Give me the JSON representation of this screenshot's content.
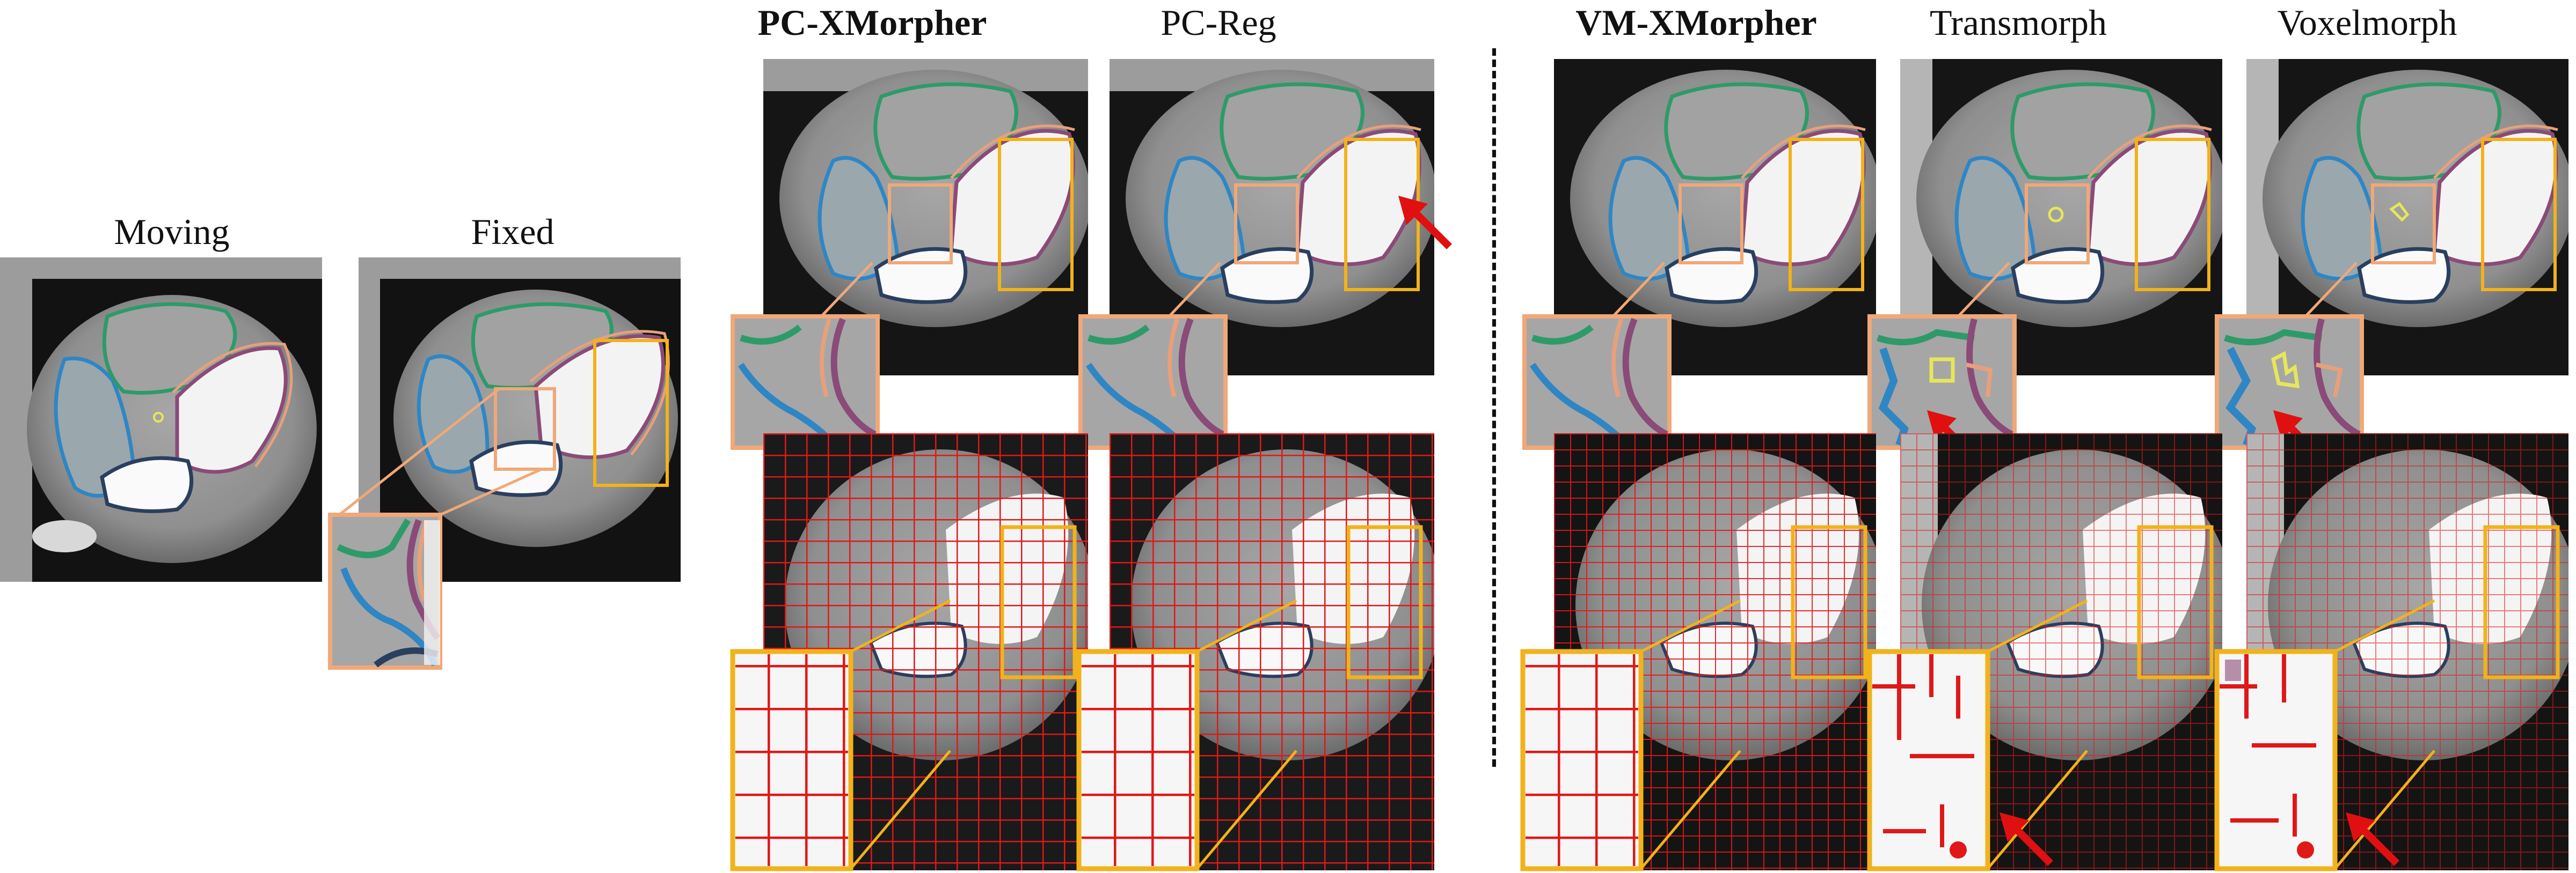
{
  "figure": {
    "labels": {
      "moving": "Moving",
      "fixed": "Fixed",
      "pc_xmorpher": "PC-XMorpher",
      "pc_reg": "PC-Reg",
      "vm_xmorpher": "VM-XMorpher",
      "transmorph": "Transmorph",
      "voxelmorph": "Voxelmorph"
    },
    "colors": {
      "contour_blue": "#2f86c4",
      "contour_green": "#2e9a6a",
      "contour_navy": "#2a3f5f",
      "contour_purple": "#8a4b78",
      "contour_orange": "#e8a07a",
      "contour_yellow": "#e6e65a",
      "zoom_box_orange": "#f0a878",
      "zoom_box_gold": "#f2b21a",
      "deformation_grid": "#e01818",
      "arrow_red": "#e01010"
    }
  }
}
